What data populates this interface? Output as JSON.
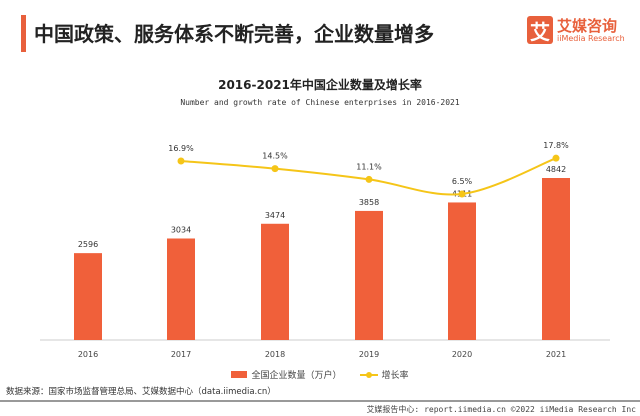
{
  "header": {
    "title": "中国政策、服务体系不断完善，企业数量增多",
    "logo_cn": "艾媒咨询",
    "logo_en": "iiMedia Research",
    "logo_mark": "艾"
  },
  "chart_data": {
    "type": "bar+line",
    "title": "2016-2021年中国企业数量及增长率",
    "subtitle": "Number and growth rate of Chinese enterprises in 2016-2021",
    "categories": [
      "2016",
      "2017",
      "2018",
      "2019",
      "2020",
      "2021"
    ],
    "series": [
      {
        "name": "全国企业数量（万户）",
        "type": "bar",
        "color": "#f0603a",
        "values": [
          2596,
          3034,
          3474,
          3858,
          4111,
          4842
        ],
        "labels": [
          "2596",
          "3034",
          "3474",
          "3858",
          "4111",
          "4842"
        ]
      },
      {
        "name": "增长率",
        "type": "line",
        "color": "#f5c518",
        "values": [
          null,
          16.9,
          14.5,
          11.1,
          6.5,
          17.8
        ],
        "labels": [
          "",
          "16.9%",
          "14.5%",
          "11.1%",
          "6.5%",
          "17.8%"
        ]
      }
    ],
    "legend": "bottom",
    "grid": false
  },
  "footer": {
    "source": "数据来源：国家市场监督管理总局、艾媒数据中心（data.iimedia.cn）",
    "copyright": "艾媒报告中心: report.iimedia.cn  ©2022  iiMedia Research Inc"
  }
}
